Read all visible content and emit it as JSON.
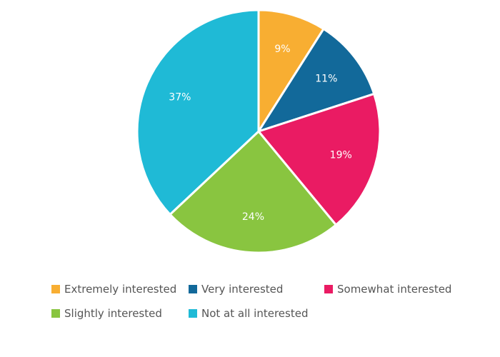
{
  "chart_data": {
    "type": "pie",
    "title": "",
    "series": [
      {
        "label": "Extremely interested",
        "value": 9,
        "display": "9%",
        "color": "#F8AE32"
      },
      {
        "label": "Very interested",
        "value": 11,
        "display": "11%",
        "color": "#12699A"
      },
      {
        "label": "Somewhat interested",
        "value": 19,
        "display": "19%",
        "color": "#EA1B63"
      },
      {
        "label": "Slightly interested",
        "value": 24,
        "display": "24%",
        "color": "#89C540"
      },
      {
        "label": "Not at all interested",
        "value": 37,
        "display": "37%",
        "color": "#1FBAD6"
      }
    ],
    "legend": "bottom",
    "start": "top",
    "direction": "clockwise",
    "unit": "%"
  }
}
